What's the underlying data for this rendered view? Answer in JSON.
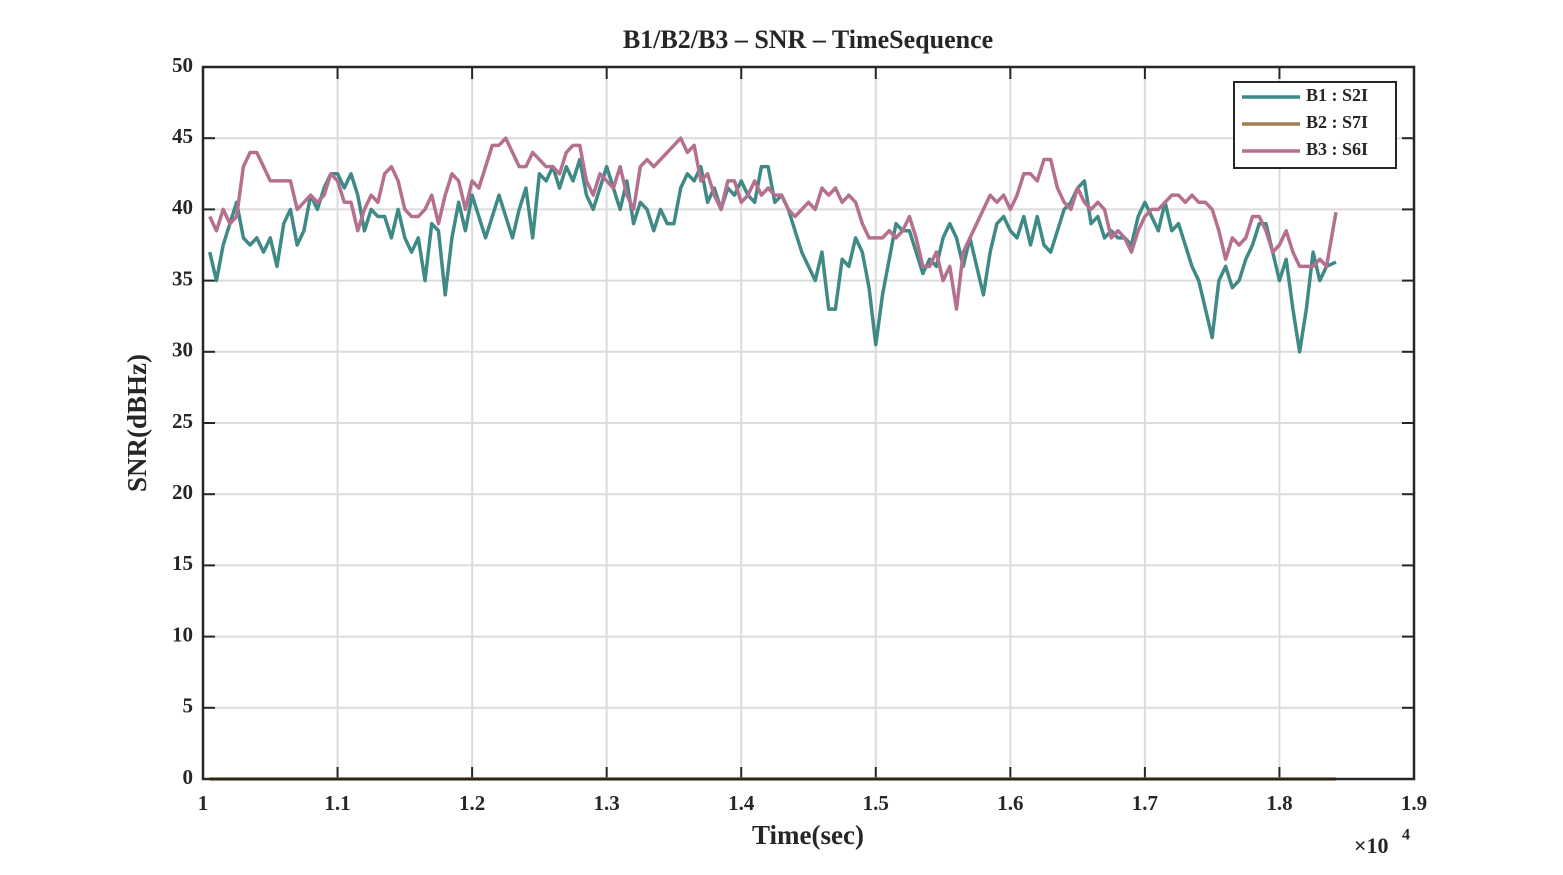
{
  "chart_data": {
    "type": "line",
    "title": "B1/B2/B3 – SNR – TimeSequence",
    "xlabel": "Time(sec)",
    "ylabel": "SNR(dBHz)",
    "x_multiplier": "×10",
    "x_exponent": "4",
    "xlim": [
      10000,
      19000
    ],
    "xticks": [
      {
        "value": 10000,
        "label": "1"
      },
      {
        "value": 11000,
        "label": "1.1"
      },
      {
        "value": 12000,
        "label": "1.2"
      },
      {
        "value": 13000,
        "label": "1.3"
      },
      {
        "value": 14000,
        "label": "1.4"
      },
      {
        "value": 15000,
        "label": "1.5"
      },
      {
        "value": 16000,
        "label": "1.6"
      },
      {
        "value": 17000,
        "label": "1.7"
      },
      {
        "value": 18000,
        "label": "1.8"
      },
      {
        "value": 19000,
        "label": "1.9"
      }
    ],
    "ylim": [
      0,
      50
    ],
    "yticks": [
      0,
      5,
      10,
      15,
      20,
      25,
      30,
      35,
      40,
      45,
      50
    ],
    "grid": true,
    "legend": "northeast",
    "x": [
      10050,
      10100,
      10150,
      10200,
      10250,
      10300,
      10350,
      10400,
      10450,
      10500,
      10550,
      10600,
      10650,
      10700,
      10750,
      10800,
      10850,
      10900,
      10950,
      11000,
      11050,
      11100,
      11150,
      11200,
      11250,
      11300,
      11350,
      11400,
      11450,
      11500,
      11550,
      11600,
      11650,
      11700,
      11750,
      11800,
      11850,
      11900,
      11950,
      12000,
      12050,
      12100,
      12150,
      12200,
      12250,
      12300,
      12350,
      12400,
      12450,
      12500,
      12550,
      12600,
      12650,
      12700,
      12750,
      12800,
      12850,
      12900,
      12950,
      13000,
      13050,
      13100,
      13150,
      13200,
      13250,
      13300,
      13350,
      13400,
      13450,
      13500,
      13550,
      13600,
      13650,
      13700,
      13750,
      13800,
      13850,
      13900,
      13950,
      14000,
      14050,
      14100,
      14150,
      14200,
      14250,
      14300,
      14350,
      14400,
      14450,
      14500,
      14550,
      14600,
      14650,
      14700,
      14750,
      14800,
      14850,
      14900,
      14950,
      15000,
      15050,
      15100,
      15150,
      15200,
      15250,
      15300,
      15350,
      15400,
      15450,
      15500,
      15550,
      15600,
      15650,
      15700,
      15750,
      15800,
      15850,
      15900,
      15950,
      16000,
      16050,
      16100,
      16150,
      16200,
      16250,
      16300,
      16350,
      16400,
      16450,
      16500,
      16550,
      16600,
      16650,
      16700,
      16750,
      16800,
      16850,
      16900,
      16950,
      17000,
      17050,
      17100,
      17150,
      17200,
      17250,
      17300,
      17350,
      17400,
      17450,
      17500,
      17550,
      17600,
      17650,
      17700,
      17750,
      17800,
      17850,
      17900,
      17950,
      18000,
      18050,
      18100,
      18150,
      18200,
      18250,
      18300,
      18350,
      18420
    ],
    "series": [
      {
        "name": "B1 : S2I",
        "color": "#3f8a86",
        "values": [
          37,
          35,
          37.5,
          39,
          40.5,
          38,
          37.5,
          38,
          37,
          38,
          36,
          39,
          40,
          37.5,
          38.5,
          41,
          40,
          41.5,
          42.5,
          42.5,
          41.5,
          42.5,
          41,
          38.5,
          40,
          39.5,
          39.5,
          38,
          40,
          38,
          37,
          38,
          35,
          39,
          38.5,
          34,
          38,
          40.5,
          38.5,
          41,
          39.5,
          38,
          39.5,
          41,
          39.5,
          38,
          40,
          41.5,
          38,
          42.5,
          42,
          43,
          41.5,
          43,
          42,
          43.5,
          41,
          40,
          41.5,
          43,
          41.5,
          40,
          42,
          39,
          40.5,
          40,
          38.5,
          40,
          39,
          39,
          41.5,
          42.5,
          42,
          43,
          40.5,
          41.5,
          40,
          41.5,
          41,
          42,
          41,
          40.5,
          43,
          43,
          40.5,
          41,
          40,
          38.5,
          37,
          36,
          35,
          37,
          33,
          33,
          36.5,
          36,
          38,
          37,
          34.5,
          30.5,
          34,
          36.5,
          39,
          38.5,
          38.5,
          37,
          35.5,
          36.5,
          36,
          38,
          39,
          38,
          36,
          38,
          36,
          34,
          37,
          39,
          39.5,
          38.5,
          38,
          39.5,
          37.5,
          39.5,
          37.5,
          37,
          38.5,
          40,
          40.5,
          41.5,
          42,
          39,
          39.5,
          38,
          38.5,
          38,
          38,
          37.5,
          39.5,
          40.5,
          39.5,
          38.5,
          40.5,
          38.5,
          39,
          37.5,
          36,
          35,
          33,
          31,
          35,
          36,
          34.5,
          35,
          36.5,
          37.5,
          39,
          39,
          37,
          35,
          36.5,
          33,
          30,
          33,
          37,
          35,
          36,
          36.3
        ]
      },
      {
        "name": "B2 : S7I",
        "color": "#a0804d",
        "x": [
          10050,
          18420
        ],
        "values": [
          0,
          0
        ]
      },
      {
        "name": "B3 : S6I",
        "color": "#b5708f",
        "values": [
          39.5,
          38.5,
          40,
          39,
          39.5,
          43,
          44,
          44,
          43,
          42,
          42,
          42,
          42,
          40,
          40.5,
          41,
          40.5,
          41,
          42.5,
          42,
          40.5,
          40.5,
          38.5,
          40,
          41,
          40.5,
          42.5,
          43,
          42,
          40,
          39.5,
          39.5,
          40,
          41,
          39,
          41,
          42.5,
          42,
          40,
          42,
          41.5,
          43,
          44.5,
          44.5,
          45,
          44,
          43,
          43,
          44,
          43.5,
          43,
          43,
          42.5,
          44,
          44.5,
          44.5,
          42,
          41,
          42.5,
          42,
          41.5,
          43,
          41,
          40,
          43,
          43.5,
          43,
          43.5,
          44,
          44.5,
          45,
          44,
          44.5,
          42,
          42.5,
          41,
          40,
          42,
          42,
          40.5,
          41,
          42,
          41,
          41.5,
          41,
          41,
          40,
          39.5,
          40,
          40.5,
          40,
          41.5,
          41,
          41.5,
          40.5,
          41,
          40.5,
          39,
          38,
          38,
          38,
          38.5,
          38,
          38.5,
          39.5,
          38,
          36,
          36,
          37,
          35,
          36,
          33,
          37,
          38,
          39,
          40,
          41,
          40.5,
          41,
          40,
          41,
          42.5,
          42.5,
          42,
          43.5,
          43.5,
          41.5,
          40.5,
          40,
          41.5,
          40.5,
          40,
          40.5,
          40,
          38,
          38.5,
          38,
          37,
          38.5,
          39.5,
          40,
          40,
          40.5,
          41,
          41,
          40.5,
          41,
          40.5,
          40.5,
          40,
          38.5,
          36.5,
          38,
          37.5,
          38,
          39.5,
          39.5,
          38.5,
          37,
          37.5,
          38.5,
          37,
          36,
          36,
          36,
          36.5,
          36,
          39.8
        ]
      }
    ]
  }
}
